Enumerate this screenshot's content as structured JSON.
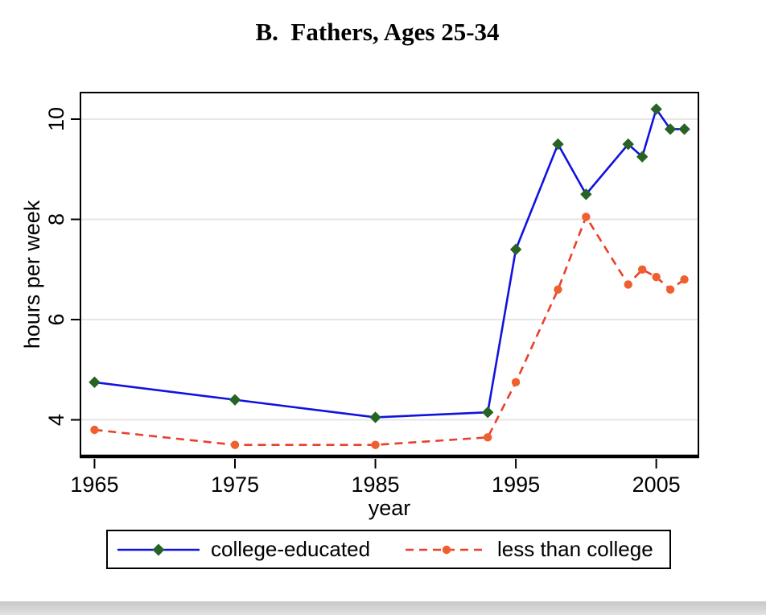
{
  "title": "B.  Fathers, Ages 25-34",
  "chart_data": {
    "type": "line",
    "title": "B.  Fathers, Ages 25-34",
    "xlabel": "year",
    "ylabel": "hours per week",
    "x": [
      1965,
      1975,
      1985,
      1993,
      1995,
      1998,
      2000,
      2003,
      2004,
      2005,
      2006,
      2007
    ],
    "series": [
      {
        "name": "college-educated",
        "values": [
          4.75,
          4.4,
          4.05,
          4.15,
          7.4,
          9.5,
          8.5,
          9.5,
          9.25,
          10.2,
          9.8,
          9.8
        ],
        "line_color": "#1212e0",
        "line_style": "solid",
        "marker": "diamond",
        "marker_color": "#276324"
      },
      {
        "name": "less than college",
        "values": [
          3.8,
          3.5,
          3.5,
          3.65,
          4.75,
          6.6,
          8.05,
          6.7,
          7.0,
          6.85,
          6.6,
          6.8
        ],
        "line_color": "#e8402a",
        "line_style": "dashed",
        "marker": "circle",
        "marker_color": "#f0602e"
      }
    ],
    "xlim": [
      1964,
      2008
    ],
    "ylim": [
      3.27,
      10.53
    ],
    "xticks": [
      1965,
      1975,
      1985,
      1995,
      2005
    ],
    "yticks": [
      4,
      6,
      8,
      10
    ],
    "grid": "horizontal",
    "gridline_color": "#e6e6e6",
    "frame_color": "#000000",
    "legend_position": "bottom"
  }
}
